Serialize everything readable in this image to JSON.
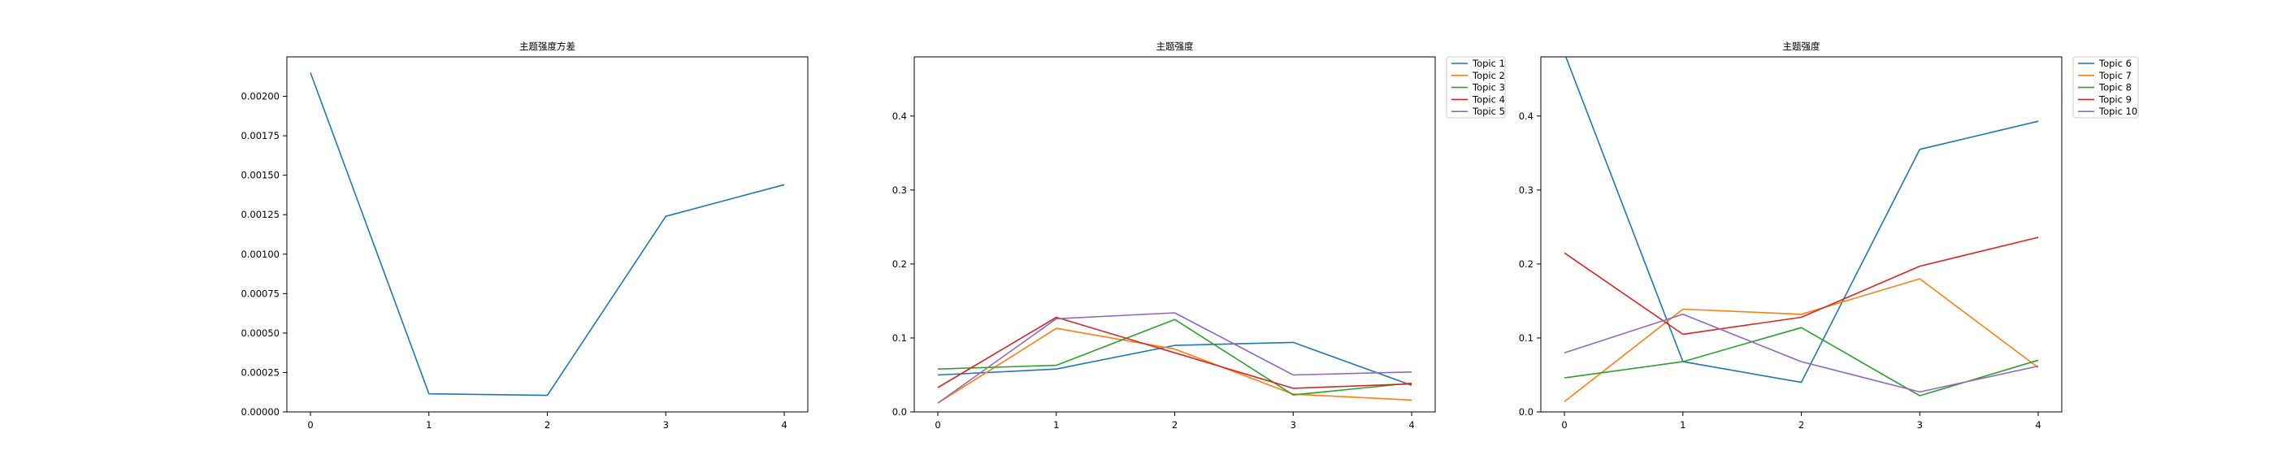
{
  "chart_data": [
    {
      "type": "line",
      "title": "主题强度方差",
      "x": [
        0,
        1,
        2,
        3,
        4
      ],
      "xticks": [
        "0",
        "1",
        "2",
        "3",
        "4"
      ],
      "ylim": [
        0,
        0.00225
      ],
      "yticks": [
        "0.00000",
        "0.00025",
        "0.00050",
        "0.00075",
        "0.00100",
        "0.00125",
        "0.00150",
        "0.00175",
        "0.00200"
      ],
      "ytick_values": [
        0,
        0.00025,
        0.0005,
        0.00075,
        0.001,
        0.00125,
        0.0015,
        0.00175,
        0.002
      ],
      "legend": "none",
      "series": [
        {
          "values": [
            0.00215,
            0.000115,
            0.000105,
            0.00124,
            0.00144
          ],
          "color": "#1f77b4"
        }
      ]
    },
    {
      "type": "line",
      "title": "主题强度",
      "x": [
        0,
        1,
        2,
        3,
        4
      ],
      "xticks": [
        "0",
        "1",
        "2",
        "3",
        "4"
      ],
      "ylim": [
        0,
        0.48
      ],
      "yticks": [
        "0.0",
        "0.1",
        "0.2",
        "0.3",
        "0.4"
      ],
      "ytick_values": [
        0,
        0.1,
        0.2,
        0.3,
        0.4
      ],
      "legend": "outside-top-right",
      "series": [
        {
          "name": "Topic 1",
          "values": [
            0.05,
            0.058,
            0.09,
            0.094,
            0.036
          ],
          "color": "#1f77b4"
        },
        {
          "name": "Topic 2",
          "values": [
            0.012,
            0.113,
            0.085,
            0.024,
            0.016
          ],
          "color": "#ff7f0e"
        },
        {
          "name": "Topic 3",
          "values": [
            0.058,
            0.063,
            0.125,
            0.023,
            0.039
          ],
          "color": "#2ca02c"
        },
        {
          "name": "Topic 4",
          "values": [
            0.033,
            0.128,
            0.08,
            0.032,
            0.038
          ],
          "color": "#d62728"
        },
        {
          "name": "Topic 5",
          "values": [
            0.012,
            0.126,
            0.134,
            0.05,
            0.054
          ],
          "color": "#9467bd"
        }
      ]
    },
    {
      "type": "line",
      "title": "主题强度",
      "x": [
        0,
        1,
        2,
        3,
        4
      ],
      "xticks": [
        "0",
        "1",
        "2",
        "3",
        "4"
      ],
      "ylim": [
        0,
        0.48
      ],
      "yticks": [
        "0.0",
        "0.1",
        "0.2",
        "0.3",
        "0.4"
      ],
      "ytick_values": [
        0,
        0.1,
        0.2,
        0.3,
        0.4
      ],
      "legend": "outside-top-right",
      "series": [
        {
          "name": "Topic 6",
          "values": [
            0.485,
            0.068,
            0.04,
            0.355,
            0.393
          ],
          "color": "#1f77b4"
        },
        {
          "name": "Topic 7",
          "values": [
            0.014,
            0.139,
            0.132,
            0.18,
            0.06
          ],
          "color": "#ff7f0e"
        },
        {
          "name": "Topic 8",
          "values": [
            0.046,
            0.068,
            0.114,
            0.022,
            0.07
          ],
          "color": "#2ca02c"
        },
        {
          "name": "Topic 9",
          "values": [
            0.215,
            0.105,
            0.128,
            0.197,
            0.236
          ],
          "color": "#d62728"
        },
        {
          "name": "Topic 10",
          "values": [
            0.08,
            0.132,
            0.068,
            0.027,
            0.062
          ],
          "color": "#9467bd"
        }
      ]
    }
  ]
}
